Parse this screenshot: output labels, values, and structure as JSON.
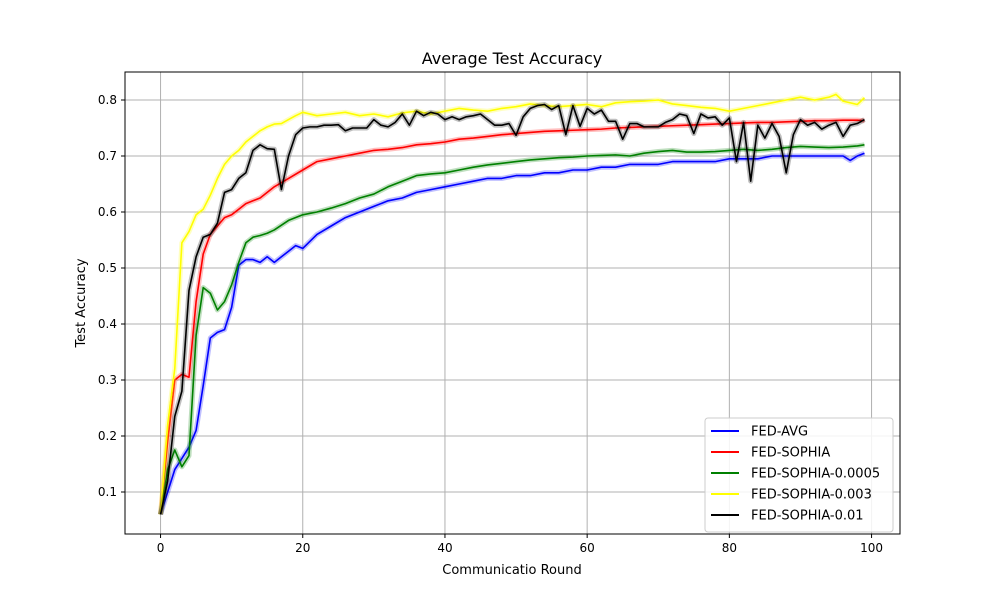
{
  "chart_data": {
    "type": "line",
    "title": "Average Test Accuracy",
    "xlabel": "Communicatio Round",
    "ylabel": "Test Accuracy",
    "xlim": [
      -5,
      104
    ],
    "ylim": [
      0.025,
      0.85
    ],
    "xticks": [
      0,
      20,
      40,
      60,
      80,
      100
    ],
    "yticks": [
      0.1,
      0.2,
      0.3,
      0.4,
      0.5,
      0.6,
      0.7,
      0.8
    ],
    "xtick_labels": [
      "0",
      "20",
      "40",
      "60",
      "80",
      "100"
    ],
    "ytick_labels": [
      "0.1",
      "0.2",
      "0.3",
      "0.4",
      "0.5",
      "0.6",
      "0.7",
      "0.8"
    ],
    "grid": true,
    "legend_position": "lower-right",
    "series": [
      {
        "name": "FED-AVG",
        "color": "#0000ff",
        "x": [
          0,
          1,
          2,
          3,
          4,
          5,
          6,
          7,
          8,
          9,
          10,
          11,
          12,
          13,
          14,
          15,
          16,
          17,
          18,
          19,
          20,
          22,
          24,
          26,
          28,
          30,
          32,
          34,
          36,
          38,
          40,
          42,
          44,
          46,
          48,
          50,
          52,
          54,
          56,
          58,
          60,
          62,
          64,
          66,
          68,
          70,
          72,
          74,
          76,
          78,
          80,
          82,
          84,
          86,
          88,
          90,
          92,
          94,
          96,
          97,
          98,
          99
        ],
        "y": [
          0.06,
          0.1,
          0.14,
          0.16,
          0.18,
          0.21,
          0.29,
          0.375,
          0.385,
          0.39,
          0.43,
          0.505,
          0.515,
          0.515,
          0.51,
          0.52,
          0.51,
          0.52,
          0.53,
          0.54,
          0.535,
          0.56,
          0.575,
          0.59,
          0.6,
          0.61,
          0.62,
          0.625,
          0.635,
          0.64,
          0.645,
          0.65,
          0.655,
          0.66,
          0.66,
          0.665,
          0.665,
          0.67,
          0.67,
          0.675,
          0.675,
          0.68,
          0.68,
          0.685,
          0.685,
          0.685,
          0.69,
          0.69,
          0.69,
          0.69,
          0.695,
          0.695,
          0.695,
          0.7,
          0.7,
          0.7,
          0.7,
          0.7,
          0.7,
          0.692,
          0.7,
          0.705
        ]
      },
      {
        "name": "FED-SOPHIA",
        "color": "#ff0000",
        "x": [
          0,
          1,
          2,
          3,
          4,
          5,
          6,
          7,
          8,
          9,
          10,
          11,
          12,
          13,
          14,
          15,
          16,
          18,
          20,
          22,
          24,
          26,
          28,
          30,
          32,
          34,
          36,
          38,
          40,
          42,
          44,
          46,
          48,
          50,
          52,
          54,
          56,
          58,
          60,
          62,
          64,
          66,
          68,
          70,
          72,
          74,
          76,
          78,
          80,
          82,
          84,
          86,
          88,
          90,
          92,
          94,
          96,
          98,
          99
        ],
        "y": [
          0.06,
          0.19,
          0.3,
          0.31,
          0.305,
          0.44,
          0.525,
          0.56,
          0.575,
          0.59,
          0.595,
          0.605,
          0.615,
          0.62,
          0.625,
          0.635,
          0.645,
          0.66,
          0.675,
          0.69,
          0.695,
          0.7,
          0.705,
          0.71,
          0.712,
          0.715,
          0.72,
          0.722,
          0.725,
          0.73,
          0.732,
          0.735,
          0.738,
          0.74,
          0.742,
          0.744,
          0.745,
          0.746,
          0.747,
          0.748,
          0.75,
          0.751,
          0.752,
          0.753,
          0.754,
          0.755,
          0.756,
          0.757,
          0.758,
          0.759,
          0.76,
          0.76,
          0.761,
          0.762,
          0.763,
          0.763,
          0.764,
          0.764,
          0.763
        ]
      },
      {
        "name": "FED-SOPHIA-0.0005",
        "color": "#008000",
        "x": [
          0,
          1,
          2,
          3,
          4,
          5,
          6,
          7,
          8,
          9,
          10,
          11,
          12,
          13,
          14,
          15,
          16,
          18,
          20,
          22,
          24,
          26,
          28,
          30,
          32,
          34,
          36,
          38,
          40,
          42,
          44,
          46,
          48,
          50,
          52,
          54,
          56,
          58,
          60,
          62,
          64,
          66,
          68,
          70,
          72,
          74,
          76,
          78,
          80,
          82,
          84,
          86,
          88,
          90,
          92,
          94,
          96,
          98,
          99
        ],
        "y": [
          0.06,
          0.14,
          0.175,
          0.145,
          0.165,
          0.38,
          0.465,
          0.455,
          0.425,
          0.44,
          0.47,
          0.51,
          0.545,
          0.555,
          0.558,
          0.562,
          0.568,
          0.585,
          0.595,
          0.6,
          0.607,
          0.615,
          0.625,
          0.632,
          0.645,
          0.655,
          0.665,
          0.668,
          0.67,
          0.675,
          0.68,
          0.684,
          0.687,
          0.69,
          0.693,
          0.695,
          0.697,
          0.698,
          0.7,
          0.701,
          0.702,
          0.7,
          0.705,
          0.708,
          0.71,
          0.707,
          0.707,
          0.708,
          0.71,
          0.712,
          0.71,
          0.712,
          0.715,
          0.717,
          0.716,
          0.715,
          0.716,
          0.718,
          0.72
        ]
      },
      {
        "name": "FED-SOPHIA-0.003",
        "color": "#ffff00",
        "x": [
          0,
          1,
          2,
          3,
          4,
          5,
          6,
          7,
          8,
          9,
          10,
          11,
          12,
          13,
          14,
          15,
          16,
          17,
          18,
          19,
          20,
          22,
          24,
          26,
          28,
          30,
          32,
          34,
          36,
          38,
          40,
          42,
          44,
          46,
          48,
          50,
          52,
          54,
          56,
          58,
          60,
          62,
          64,
          66,
          68,
          70,
          72,
          74,
          76,
          78,
          80,
          82,
          84,
          86,
          88,
          90,
          92,
          94,
          95,
          96,
          98,
          99
        ],
        "y": [
          0.06,
          0.22,
          0.32,
          0.545,
          0.565,
          0.595,
          0.605,
          0.63,
          0.66,
          0.685,
          0.7,
          0.71,
          0.725,
          0.735,
          0.745,
          0.752,
          0.757,
          0.758,
          0.765,
          0.772,
          0.778,
          0.772,
          0.775,
          0.778,
          0.772,
          0.775,
          0.77,
          0.777,
          0.78,
          0.775,
          0.78,
          0.785,
          0.782,
          0.78,
          0.785,
          0.788,
          0.793,
          0.79,
          0.788,
          0.79,
          0.792,
          0.788,
          0.795,
          0.797,
          0.798,
          0.8,
          0.793,
          0.79,
          0.787,
          0.785,
          0.78,
          0.785,
          0.79,
          0.795,
          0.8,
          0.805,
          0.8,
          0.805,
          0.81,
          0.798,
          0.792,
          0.804
        ]
      },
      {
        "name": "FED-SOPHIA-0.01",
        "color": "#000000",
        "x": [
          0,
          1,
          2,
          3,
          4,
          5,
          6,
          7,
          8,
          9,
          10,
          11,
          12,
          13,
          14,
          15,
          16,
          17,
          18,
          19,
          20,
          21,
          22,
          23,
          24,
          25,
          26,
          27,
          28,
          29,
          30,
          31,
          32,
          33,
          34,
          35,
          36,
          37,
          38,
          39,
          40,
          41,
          42,
          43,
          44,
          45,
          46,
          47,
          48,
          49,
          50,
          51,
          52,
          53,
          54,
          55,
          56,
          57,
          58,
          59,
          60,
          61,
          62,
          63,
          64,
          65,
          66,
          67,
          68,
          69,
          70,
          71,
          72,
          73,
          74,
          75,
          76,
          77,
          78,
          79,
          80,
          81,
          82,
          83,
          84,
          85,
          86,
          87,
          88,
          89,
          90,
          91,
          92,
          93,
          94,
          95,
          96,
          97,
          98,
          99
        ],
        "y": [
          0.06,
          0.12,
          0.235,
          0.28,
          0.46,
          0.52,
          0.555,
          0.56,
          0.58,
          0.635,
          0.64,
          0.66,
          0.67,
          0.71,
          0.72,
          0.713,
          0.712,
          0.64,
          0.7,
          0.738,
          0.75,
          0.752,
          0.752,
          0.755,
          0.755,
          0.756,
          0.745,
          0.75,
          0.75,
          0.75,
          0.765,
          0.755,
          0.752,
          0.76,
          0.775,
          0.755,
          0.78,
          0.772,
          0.778,
          0.775,
          0.765,
          0.77,
          0.765,
          0.77,
          0.772,
          0.775,
          0.765,
          0.755,
          0.755,
          0.758,
          0.737,
          0.77,
          0.785,
          0.79,
          0.792,
          0.783,
          0.79,
          0.738,
          0.79,
          0.753,
          0.785,
          0.775,
          0.782,
          0.762,
          0.762,
          0.73,
          0.758,
          0.758,
          0.752,
          0.752,
          0.752,
          0.76,
          0.765,
          0.775,
          0.772,
          0.74,
          0.775,
          0.768,
          0.77,
          0.755,
          0.768,
          0.69,
          0.76,
          0.655,
          0.755,
          0.732,
          0.758,
          0.735,
          0.67,
          0.738,
          0.765,
          0.755,
          0.76,
          0.748,
          0.755,
          0.76,
          0.735,
          0.755,
          0.758,
          0.765
        ]
      }
    ]
  }
}
